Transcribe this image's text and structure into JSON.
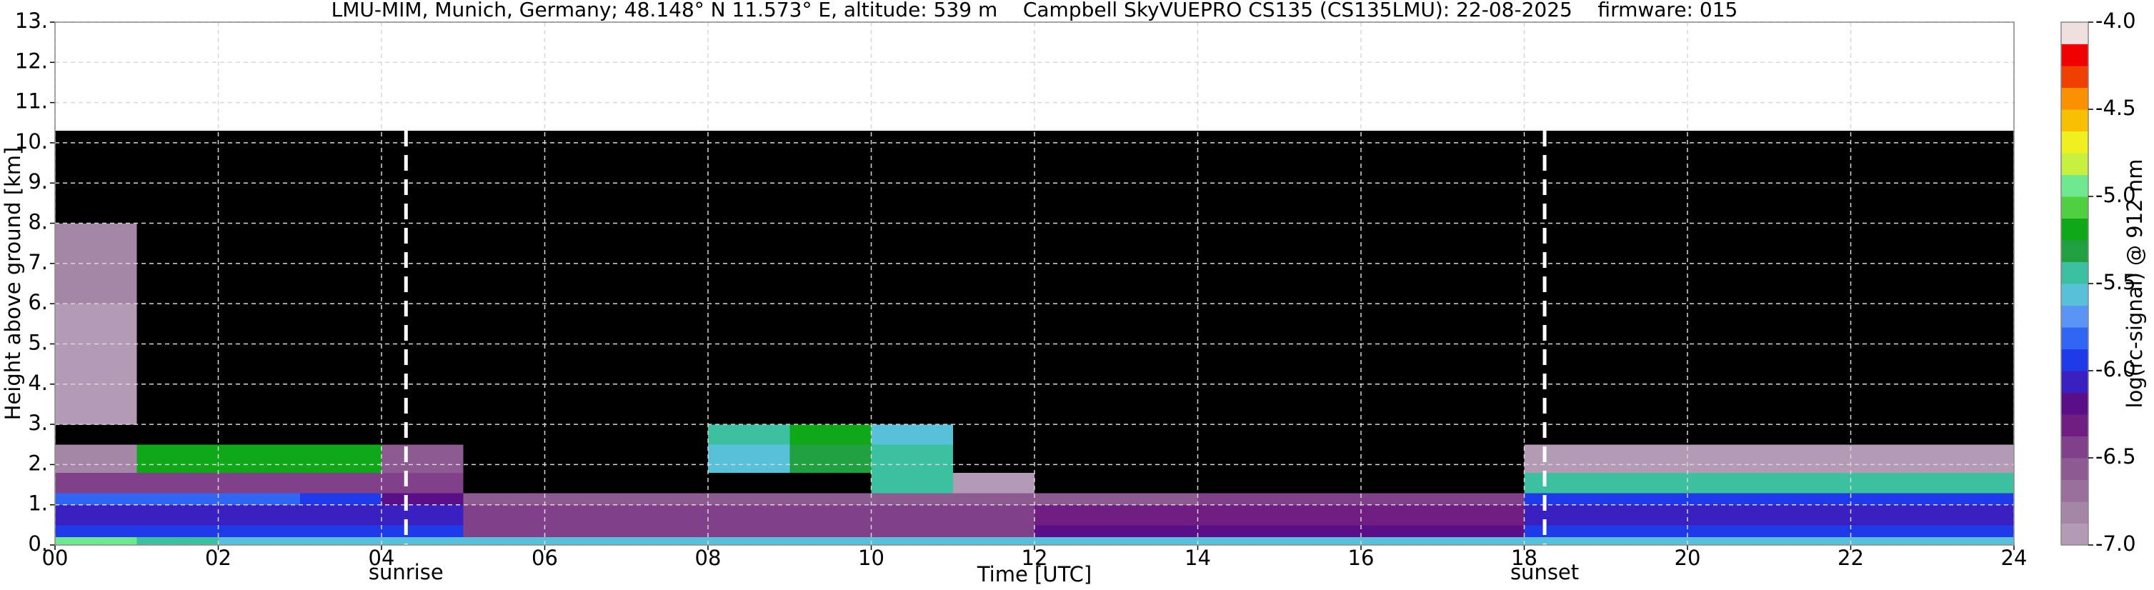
{
  "chart_data": {
    "type": "heatmap",
    "title": "LMU-MIM, Munich, Germany; 48.148° N 11.573° E, altitude: 539 m    Campbell SkyVUEPRO CS135 (CS135LMU): 22-08-2025    firmware: 015",
    "x_label": "Time [UTC]",
    "y_label": "Height above ground [km]",
    "colorbar_label": "log(rc-signal) @ 912 nm",
    "xlim": [
      0,
      24
    ],
    "ylim": [
      0,
      13
    ],
    "xticks": [
      {
        "value": 0,
        "label": "00"
      },
      {
        "value": 2,
        "label": "02"
      },
      {
        "value": 4,
        "label": "04"
      },
      {
        "value": 6,
        "label": "06"
      },
      {
        "value": 8,
        "label": "08"
      },
      {
        "value": 10,
        "label": "10"
      },
      {
        "value": 12,
        "label": "12"
      },
      {
        "value": 14,
        "label": "14"
      },
      {
        "value": 16,
        "label": "16"
      },
      {
        "value": 18,
        "label": "18"
      },
      {
        "value": 20,
        "label": "20"
      },
      {
        "value": 22,
        "label": "22"
      },
      {
        "value": 24,
        "label": "24"
      }
    ],
    "yticks": [
      {
        "value": 0,
        "label": "0."
      },
      {
        "value": 1,
        "label": "1."
      },
      {
        "value": 2,
        "label": "2."
      },
      {
        "value": 3,
        "label": "3."
      },
      {
        "value": 4,
        "label": "4."
      },
      {
        "value": 5,
        "label": "5."
      },
      {
        "value": 6,
        "label": "6."
      },
      {
        "value": 7,
        "label": "7."
      },
      {
        "value": 8,
        "label": "8."
      },
      {
        "value": 9,
        "label": "9."
      },
      {
        "value": 10,
        "label": "10."
      },
      {
        "value": 11,
        "label": "11."
      },
      {
        "value": 12,
        "label": "12."
      },
      {
        "value": 13,
        "label": "13."
      }
    ],
    "grid": true,
    "clim": [
      -7,
      -4
    ],
    "cticks": [
      {
        "value": -7,
        "label": "-7.0"
      },
      -6.5,
      {
        "value": -6,
        "label": "-6.0"
      },
      -5.5,
      {
        "value": -5,
        "label": "-5.0"
      },
      -4.5,
      {
        "value": -4,
        "label": "-4.0"
      }
    ],
    "colors": [
      "#b49bb5",
      "#a586a7",
      "#98709b",
      "#8d5a92",
      "#80408a",
      "#701e82",
      "#5a0f88",
      "#3a20c0",
      "#1f3ae8",
      "#2f66f4",
      "#5a95f6",
      "#58c0d8",
      "#3cc0a0",
      "#20a040",
      "#10a818",
      "#50d040",
      "#70e890",
      "#c8f040",
      "#f0f020",
      "#f8c000",
      "#f89000",
      "#f04000",
      "#f00000",
      "#f0a0a0"
    ],
    "top_color": "#f0e0e0",
    "under_color": "#000000",
    "markers": [
      {
        "x": 4.3,
        "label": "sunrise"
      },
      {
        "x": 18.25,
        "label": "sunset"
      }
    ],
    "x": [
      0,
      1,
      2,
      3,
      4,
      5,
      6,
      7,
      8,
      9,
      10,
      11,
      12,
      13,
      14,
      15,
      16,
      17,
      18,
      19,
      20,
      21,
      22,
      23,
      24
    ],
    "y": [
      0,
      0.2,
      0.5,
      1,
      1.3,
      1.8,
      2.5,
      3,
      4,
      6,
      8,
      10.3
    ],
    "z": [
      [
        -4.9,
        -5.5,
        -5.6,
        -5.6,
        -5.6,
        -5.6,
        -5.6,
        -5.6,
        -5.6,
        -5.6,
        -5.6,
        -5.6,
        -5.6,
        -5.6,
        -5.6,
        -5.6,
        -5.6,
        -5.6,
        -5.6,
        -5.6,
        -5.6,
        -5.6,
        -5.6,
        -5.6
      ],
      [
        -6.0,
        -6.0,
        -6.0,
        -6.0,
        -6.0,
        -6.4,
        -6.4,
        -6.4,
        -6.4,
        -6.4,
        -6.4,
        -6.4,
        -6.2,
        -6.2,
        -6.2,
        -6.2,
        -6.2,
        -6.2,
        -6.0,
        -6.0,
        -6.0,
        -6.0,
        -6.0,
        -6.0
      ],
      [
        -6.1,
        -6.1,
        -6.1,
        -6.1,
        -6.1,
        -6.4,
        -6.4,
        -6.4,
        -6.4,
        -6.4,
        -6.4,
        -6.4,
        -6.3,
        -6.3,
        -6.3,
        -6.3,
        -6.3,
        -6.3,
        -6.1,
        -6.1,
        -6.1,
        -6.1,
        -6.1,
        -6.1
      ],
      [
        -5.8,
        -5.8,
        -5.8,
        -6.0,
        -6.2,
        -6.6,
        -6.6,
        -6.6,
        -6.6,
        -6.6,
        -6.6,
        -6.6,
        -6.6,
        -6.6,
        -6.4,
        -6.4,
        -6.4,
        -6.4,
        -5.9,
        -5.9,
        -5.9,
        -5.9,
        -5.9,
        -5.9
      ],
      [
        -6.5,
        -6.5,
        -6.5,
        -6.5,
        -6.5,
        -7.2,
        -7.2,
        -7.2,
        -7.2,
        -7.2,
        -5.4,
        -6.9,
        -7.1,
        -7.1,
        -7.1,
        -7.1,
        -7.1,
        -7.1,
        -5.5,
        -5.5,
        -5.5,
        -5.5,
        -5.5,
        -5.5
      ],
      [
        -6.8,
        -5.2,
        -5.2,
        -5.2,
        -6.6,
        -7.2,
        -7.2,
        -7.2,
        -5.6,
        -5.3,
        -5.4,
        -7.2,
        -7.2,
        -7.2,
        -7.2,
        -7.2,
        -7.2,
        -7.2,
        -6.9,
        -6.9,
        -6.9,
        -6.9,
        -6.9,
        -6.9
      ],
      [
        -7.3,
        -7.5,
        -7.5,
        -7.5,
        -7.5,
        -7.5,
        -7.5,
        -7.5,
        -5.4,
        -5.2,
        -5.6,
        -7.2,
        -7.2,
        -7.2,
        -7.2,
        -7.2,
        -7.2,
        -7.2,
        -7.3,
        -7.3,
        -7.3,
        -7.3,
        -7.3,
        -7.3
      ],
      [
        -6.9,
        -7.5,
        -7.5,
        -7.5,
        -7.5,
        -7.2,
        -7.2,
        -7.2,
        -7.2,
        -7.2,
        -7.2,
        -7.2,
        -7.2,
        -7.2,
        -7.2,
        -7.2,
        -7.2,
        -7.2,
        -7.5,
        -7.5,
        -7.5,
        -7.5,
        -7.5,
        -7.5
      ],
      [
        -6.9,
        -7.5,
        -7.5,
        -7.5,
        -7.5,
        -7.2,
        -7.2,
        -7.2,
        -7.2,
        -7.2,
        -7.2,
        -7.2,
        -7.2,
        -7.2,
        -7.2,
        -7.2,
        -7.2,
        -7.2,
        -7.5,
        -7.5,
        -7.5,
        -7.5,
        -7.5,
        -7.5
      ],
      [
        -6.8,
        -7.4,
        -7.4,
        -7.4,
        -7.4,
        -7.1,
        -7.1,
        -7.1,
        -7.1,
        -7.1,
        -7.1,
        -7.1,
        -7.1,
        -7.1,
        -7.1,
        -7.1,
        -7.1,
        -7.1,
        -7.4,
        -7.4,
        -7.4,
        -7.4,
        -7.4,
        -7.4
      ],
      [
        -7.3,
        -7.3,
        -7.3,
        -7.3,
        -7.3,
        -7.05,
        -7.05,
        -7.05,
        -7.05,
        -7.05,
        -7.05,
        -7.05,
        -7.05,
        -7.05,
        -7.05,
        -7.05,
        -7.05,
        -7.05,
        -7.3,
        -7.3,
        -7.3,
        -7.3,
        -7.3,
        -7.3
      ]
    ]
  }
}
